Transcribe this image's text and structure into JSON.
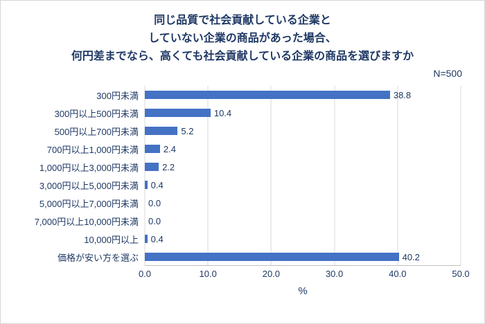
{
  "header": {
    "title_lines": [
      "同じ品質で社会貢献している企業と",
      "していない企業の商品があった場合、",
      "何円差までなら、高くても社会貢献している企業の商品を選びますか"
    ],
    "n_label": "N=500"
  },
  "chart_data": {
    "type": "bar",
    "orientation": "horizontal",
    "title": "同じ品質で社会貢献している企業としていない企業の商品があった場合、何円差までなら、高くても社会貢献している企業の商品を選びますか",
    "sample_size_label": "N=500",
    "categories": [
      "300円未満",
      "300円以上500円未満",
      "500円以上700円未満",
      "700円以上1,000円未満",
      "1,000円以上3,000円未満",
      "3,000円以上5,000円未満",
      "5,000円以上7,000円未満",
      "7,000円以上10,000円未満",
      "10,000円以上",
      "価格が安い方を選ぶ"
    ],
    "values": [
      38.8,
      10.4,
      5.2,
      2.4,
      2.2,
      0.4,
      0.0,
      0.0,
      0.4,
      40.2
    ],
    "value_labels": [
      "38.8",
      "10.4",
      "5.2",
      "2.4",
      "2.2",
      "0.4",
      "0.0",
      "0.0",
      "0.4",
      "40.2"
    ],
    "xlabel": "%",
    "xlim": [
      0,
      50
    ],
    "ticks": [
      {
        "value": 0,
        "label": "0.0"
      },
      {
        "value": 10,
        "label": "10.0"
      },
      {
        "value": 20,
        "label": "20.0"
      },
      {
        "value": 30,
        "label": "30.0"
      },
      {
        "value": 40,
        "label": "40.0"
      },
      {
        "value": 50,
        "label": "50.0"
      }
    ],
    "grid": true,
    "legend": "none",
    "bar_color": "#4472C4",
    "text_color": "#1F3864",
    "gridline_color": "#d9d9d9",
    "axis_line_color": "#bfbfbf"
  }
}
